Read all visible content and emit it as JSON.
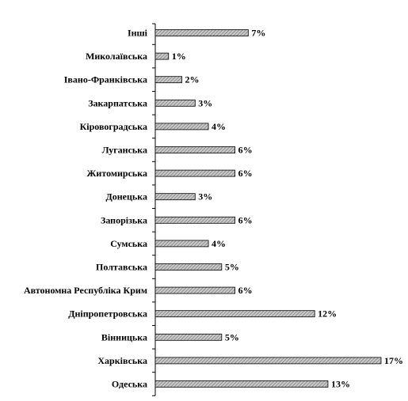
{
  "chart_data": {
    "type": "bar",
    "orientation": "horizontal",
    "title": "",
    "xlabel": "",
    "ylabel": "",
    "categories": [
      "Інші",
      "Миколаївська",
      "Івано-Франківська",
      "Закарпатська",
      "Кіровоградська",
      "Луганська",
      "Житомирська",
      "Донецька",
      "Запорізька",
      "Сумська",
      "Полтавська",
      "Автономна Республіка Крим",
      "Дніпропетровська",
      "Вінницька",
      "Харківська",
      "Одеська"
    ],
    "values": [
      7,
      1,
      2,
      3,
      4,
      6,
      6,
      3,
      6,
      4,
      5,
      6,
      12,
      5,
      17,
      13
    ],
    "value_labels": [
      "7%",
      "1%",
      "2%",
      "3%",
      "4%",
      "6%",
      "6%",
      "3%",
      "6%",
      "4%",
      "5%",
      "6%",
      "12%",
      "5%",
      "17%",
      "13%"
    ],
    "unit": "%",
    "xlim": [
      0,
      17
    ],
    "grid": false,
    "legend": "none",
    "bar_fill": "hatched gray",
    "colors": {
      "bar_fill": "#c8c8c8",
      "bar_hatch": "#6e6e6e",
      "bar_stroke": "#000000",
      "axis": "#000000"
    }
  }
}
